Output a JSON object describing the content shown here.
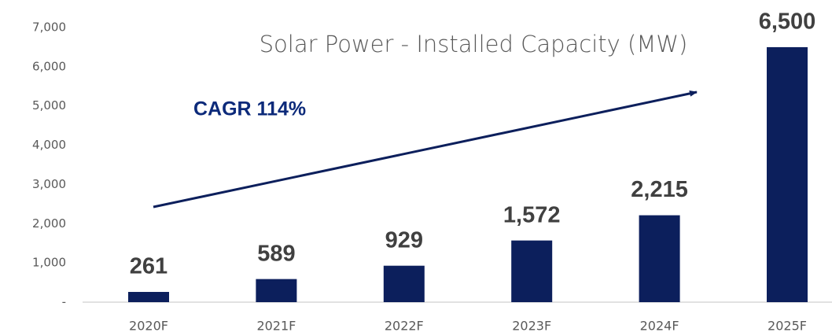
{
  "chart_data": {
    "type": "bar",
    "title": "Solar Power - Installed Capacity (MW)",
    "annotation": "CAGR 114%",
    "categories": [
      "2020F",
      "2021F",
      "2022F",
      "2023F",
      "2024F",
      "2025F"
    ],
    "values": [
      261,
      589,
      929,
      1572,
      2215,
      6500
    ],
    "value_labels": [
      "261",
      "589",
      "929",
      "1,572",
      "2,215",
      "6,500"
    ],
    "color": "#0c1f5c",
    "ylim": [
      0,
      7000
    ],
    "yticks": [
      {
        "value": 0,
        "label": "-"
      },
      {
        "value": 1000,
        "label": "1,000"
      },
      {
        "value": 2000,
        "label": "2,000"
      },
      {
        "value": 3000,
        "label": "3,000"
      },
      {
        "value": 4000,
        "label": "4,000"
      },
      {
        "value": 5000,
        "label": "5,000"
      },
      {
        "value": 6000,
        "label": "6,000"
      },
      {
        "value": 7000,
        "label": "7,000"
      }
    ],
    "grid": false
  }
}
